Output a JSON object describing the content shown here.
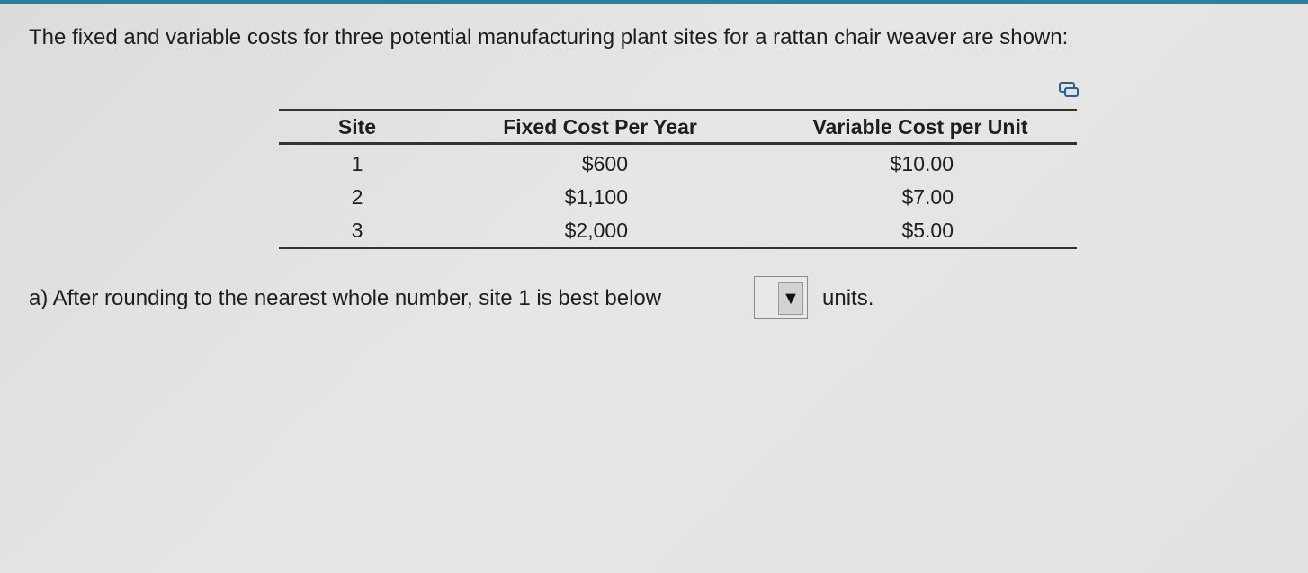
{
  "intro": "The fixed and variable costs for three potential manufacturing plant sites for a rattan chair weaver are shown:",
  "table": {
    "headers": [
      "Site",
      "Fixed Cost Per Year",
      "Variable Cost per Unit"
    ],
    "rows": [
      [
        "1",
        "$600",
        "$10.00"
      ],
      [
        "2",
        "$1,100",
        "$7.00"
      ],
      [
        "3",
        "$2,000",
        "$5.00"
      ]
    ]
  },
  "question": {
    "prefix": "a) After rounding to the nearest whole number, site 1 is best below",
    "suffix": "units."
  }
}
